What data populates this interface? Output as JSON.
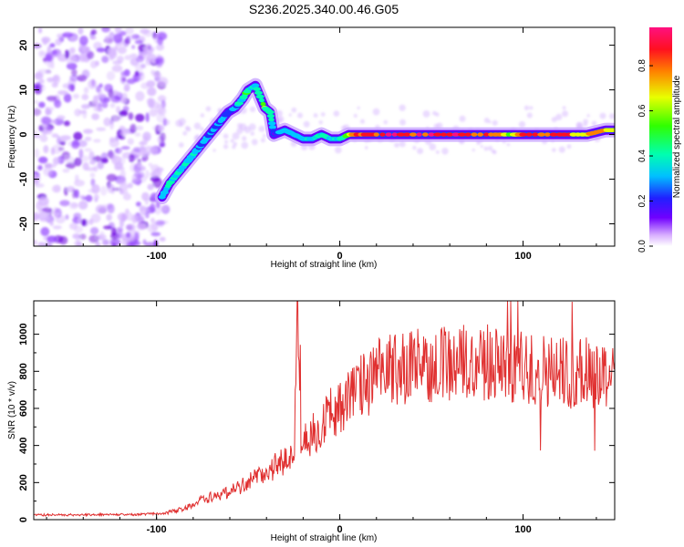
{
  "title": "S236.2025.340.00.46.G05",
  "chart_data": [
    {
      "type": "heatmap",
      "name": "spectrogram",
      "xlabel": "Height of straight line (km)",
      "ylabel": "Frequency (Hz)",
      "xlim": [
        -167,
        150
      ],
      "ylim": [
        -25,
        24
      ],
      "xticks": [
        -100,
        0,
        100
      ],
      "yticks": [
        -20,
        -10,
        0,
        10,
        20
      ],
      "colorbar": {
        "label": "Normalized spectral amplitude",
        "range": [
          0,
          0.97
        ],
        "ticks": [
          "0.0",
          "0.2",
          "0.4",
          "0.6",
          "0.8"
        ],
        "tick_values": [
          0,
          0.2,
          0.4,
          0.6,
          0.8
        ]
      },
      "signal_track": {
        "description_points": [
          [
            -97,
            -14,
            0.3
          ],
          [
            -93,
            -11,
            0.4
          ],
          [
            -89,
            -9,
            0.35
          ],
          [
            -85,
            -7,
            0.45
          ],
          [
            -81,
            -5,
            0.4
          ],
          [
            -77,
            -3,
            0.3
          ],
          [
            -73,
            -1,
            0.35
          ],
          [
            -69,
            1,
            0.3
          ],
          [
            -65,
            3,
            0.35
          ],
          [
            -61,
            5,
            0.3
          ],
          [
            -57,
            6,
            0.35
          ],
          [
            -53,
            8,
            0.4
          ],
          [
            -50,
            10,
            0.45
          ],
          [
            -46,
            11,
            0.35
          ],
          [
            -41,
            6,
            0.55
          ],
          [
            -38,
            5,
            0.5
          ],
          [
            -36,
            0,
            0.2
          ],
          [
            -30,
            1,
            0.4
          ],
          [
            -25,
            0,
            0.35
          ],
          [
            -20,
            -1,
            0.4
          ],
          [
            -15,
            -1,
            0.35
          ],
          [
            -10,
            0,
            0.45
          ],
          [
            -5,
            -1,
            0.4
          ],
          [
            0,
            -1,
            0.45
          ],
          [
            5,
            0,
            0.6
          ],
          [
            10,
            0,
            0.8
          ],
          [
            20,
            0,
            0.85
          ],
          [
            40,
            0,
            0.85
          ],
          [
            60,
            0,
            0.85
          ],
          [
            80,
            0,
            0.8
          ],
          [
            95,
            0,
            0.6
          ],
          [
            100,
            0,
            0.8
          ],
          [
            120,
            0,
            0.8
          ],
          [
            135,
            0,
            0.7
          ],
          [
            145,
            1,
            0.75
          ],
          [
            150,
            1,
            0.7
          ]
        ]
      }
    },
    {
      "type": "line",
      "name": "snr",
      "xlabel": "Height of straight line (km)",
      "ylabel": "SNR (10 * v/v)",
      "xlim": [
        -167,
        150
      ],
      "ylim": [
        0,
        1180
      ],
      "xticks": [
        -100,
        0,
        100
      ],
      "yticks": [
        0,
        200,
        400,
        600,
        800,
        1000
      ],
      "color": "#e03030",
      "spike": {
        "x": -23,
        "y": 1180
      },
      "trend": [
        [
          -167,
          25
        ],
        [
          -110,
          28
        ],
        [
          -95,
          35
        ],
        [
          -85,
          60
        ],
        [
          -75,
          110
        ],
        [
          -60,
          150
        ],
        [
          -45,
          230
        ],
        [
          -35,
          290
        ],
        [
          -28,
          320
        ],
        [
          -20,
          400
        ],
        [
          -10,
          520
        ],
        [
          0,
          620
        ],
        [
          10,
          700
        ],
        [
          20,
          780
        ],
        [
          30,
          820
        ],
        [
          50,
          840
        ],
        [
          80,
          850
        ],
        [
          100,
          820
        ],
        [
          120,
          800
        ],
        [
          140,
          790
        ],
        [
          150,
          800
        ]
      ]
    }
  ],
  "colors": {
    "signal_low": "#6b00ff",
    "signal_mid": "#00ffe0",
    "signal_high": "#ff2020",
    "noise": "#b070ff",
    "line": "#e03030"
  }
}
